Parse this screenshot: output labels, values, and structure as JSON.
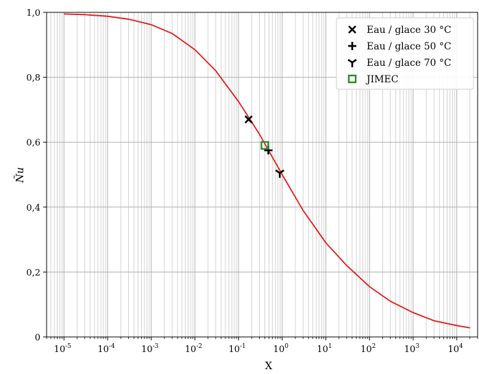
{
  "chart_data": {
    "type": "line",
    "xlabel": "X",
    "ylabel": "Ñu",
    "x_scale": "log",
    "xlim": [
      4e-06,
      30000.0
    ],
    "ylim": [
      0,
      1.0
    ],
    "grid": "on (major and minor)",
    "legend_position": "top-right",
    "x_tick_labels": [
      {
        "base": "10",
        "exp": "-5",
        "value": 1e-05
      },
      {
        "base": "10",
        "exp": "-4",
        "value": 0.0001
      },
      {
        "base": "10",
        "exp": "-3",
        "value": 0.001
      },
      {
        "base": "10",
        "exp": "-2",
        "value": 0.01
      },
      {
        "base": "10",
        "exp": "-1",
        "value": 0.1
      },
      {
        "base": "10",
        "exp": "0",
        "value": 1
      },
      {
        "base": "10",
        "exp": "1",
        "value": 10
      },
      {
        "base": "10",
        "exp": "2",
        "value": 100
      },
      {
        "base": "10",
        "exp": "3",
        "value": 1000
      },
      {
        "base": "10",
        "exp": "4",
        "value": 10000
      }
    ],
    "y_ticks": [
      {
        "label": "0",
        "value": 0
      },
      {
        "label": "0,2",
        "value": 0.2
      },
      {
        "label": "0,4",
        "value": 0.4
      },
      {
        "label": "0,6",
        "value": 0.6
      },
      {
        "label": "0,8",
        "value": 0.8
      },
      {
        "label": "1,0",
        "value": 1.0
      }
    ],
    "series": [
      {
        "kind": "line",
        "color": "#e41a1c",
        "points": [
          [
            1e-05,
            0.995
          ],
          [
            3e-05,
            0.993
          ],
          [
            0.0001,
            0.988
          ],
          [
            0.0003,
            0.979
          ],
          [
            0.001,
            0.962
          ],
          [
            0.003,
            0.935
          ],
          [
            0.01,
            0.885
          ],
          [
            0.03,
            0.82
          ],
          [
            0.1,
            0.725
          ],
          [
            0.3,
            0.625
          ],
          [
            1,
            0.5
          ],
          [
            3,
            0.39
          ],
          [
            10,
            0.29
          ],
          [
            30,
            0.22
          ],
          [
            100,
            0.155
          ],
          [
            300,
            0.11
          ],
          [
            1000,
            0.075
          ],
          [
            3000,
            0.05
          ],
          [
            10000,
            0.035
          ],
          [
            20000,
            0.028
          ]
        ]
      },
      {
        "name": "Eau / glace 30 °C",
        "kind": "marker",
        "marker": "x",
        "color": "#000000",
        "points": [
          [
            0.17,
            0.67
          ]
        ]
      },
      {
        "name": "Eau / glace 50 °C",
        "kind": "marker",
        "marker": "plus",
        "color": "#000000",
        "points": [
          [
            0.48,
            0.575
          ]
        ]
      },
      {
        "name": "Eau / glace 70 °C",
        "kind": "marker",
        "marker": "tri_down",
        "color": "#000000",
        "points": [
          [
            0.88,
            0.505
          ]
        ]
      },
      {
        "name": "JIMEC",
        "kind": "marker",
        "marker": "square_open",
        "color": "#2a8a2a",
        "points": [
          [
            0.4,
            0.59
          ]
        ]
      }
    ]
  }
}
